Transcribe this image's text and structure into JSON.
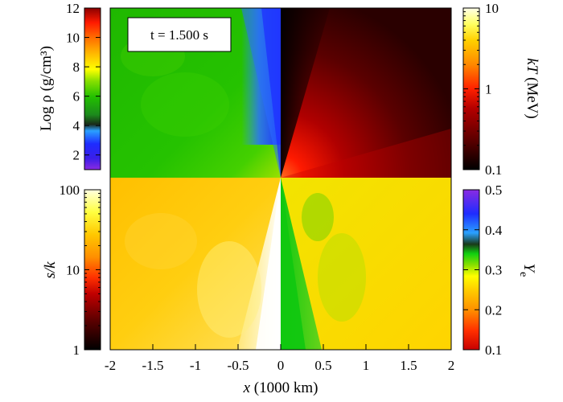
{
  "chart_data": {
    "type": "heatmap",
    "time_label": "t = 1.500 s",
    "x_axis": {
      "label_var": "x",
      "label_unit": " (1000 km)",
      "ticks": [
        -2,
        -1.5,
        -1,
        -0.5,
        0,
        0.5,
        1,
        1.5,
        2
      ],
      "tick_labels": [
        "-2",
        "-1.5",
        "-1",
        "-0.5",
        "0",
        "0.5",
        "1",
        "1.5",
        "2"
      ],
      "range": [
        -2,
        2
      ]
    },
    "quadrants": [
      {
        "position": "top-left",
        "quantity": "Log ρ"
      },
      {
        "position": "top-right",
        "quantity": "kT"
      },
      {
        "position": "bottom-left",
        "quantity": "s/k"
      },
      {
        "position": "bottom-right",
        "quantity": "Ye"
      }
    ],
    "colorbars": {
      "density": {
        "label": "Log ρ (g/cm³)",
        "scale": "linear",
        "range": [
          1,
          12
        ],
        "ticks": [
          2,
          4,
          6,
          8,
          10,
          12
        ],
        "tick_labels": [
          "2",
          "4",
          "6",
          "8",
          "10",
          "12"
        ],
        "colors": [
          "#8a2be2",
          "#1e2cff",
          "#2aa0ff",
          "#1c3a1c",
          "#22c000",
          "#7fe000",
          "#ffff00",
          "#ffb000",
          "#ff6a00",
          "#ff2200",
          "#c00000",
          "#8b0000"
        ]
      },
      "temperature": {
        "label_var": "kT",
        "label_unit": " (MeV)",
        "scale": "log",
        "range": [
          0.1,
          10
        ],
        "ticks": [
          0.1,
          1,
          10
        ],
        "tick_labels": [
          "0.1",
          "1",
          "10"
        ],
        "colors": [
          "#000000",
          "#5a0000",
          "#b40000",
          "#ff2000",
          "#ff8800",
          "#ffd000",
          "#ffff60",
          "#ffffe0"
        ]
      },
      "entropy": {
        "label": "s/k",
        "scale": "log",
        "range": [
          1,
          100
        ],
        "ticks": [
          1,
          10,
          100
        ],
        "tick_labels": [
          "1",
          "10",
          "100"
        ],
        "colors": [
          "#000000",
          "#5a0000",
          "#c00000",
          "#ff3000",
          "#ff9000",
          "#ffc800",
          "#ffff40",
          "#ffffd8"
        ]
      },
      "electron_fraction": {
        "label_var": "Y",
        "label_sub": "e",
        "scale": "linear",
        "range": [
          0.1,
          0.5
        ],
        "ticks": [
          0.1,
          0.2,
          0.3,
          0.4,
          0.5
        ],
        "tick_labels": [
          "0.1",
          "0.2",
          "0.3",
          "0.4",
          "0.5"
        ],
        "colors": [
          "#c80000",
          "#ff3000",
          "#ff9000",
          "#ffd000",
          "#ffff00",
          "#88e000",
          "#10d010",
          "#1a3a1a",
          "#2aa0ff",
          "#1e2cff",
          "#8a2be2"
        ]
      }
    }
  }
}
